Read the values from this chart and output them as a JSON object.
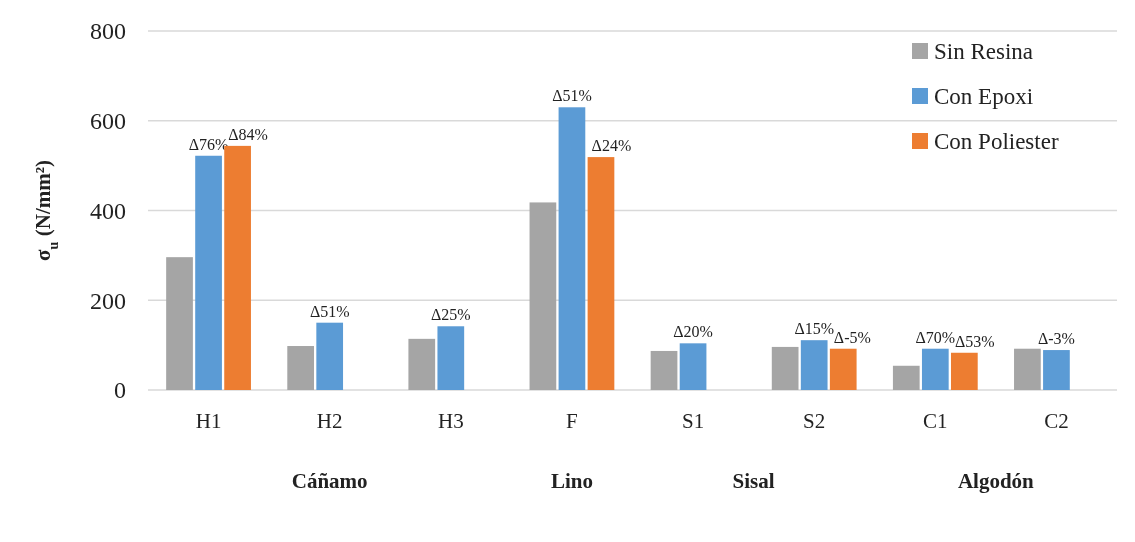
{
  "chart_data": {
    "type": "bar",
    "ylabel": "σ$_{u}$ (N/mm²)",
    "categories": [
      "H1",
      "H2",
      "H3",
      "F",
      "S1",
      "S2",
      "C1",
      "C2"
    ],
    "series": [
      {
        "name": "Sin Resina",
        "color": "#a5a5a5",
        "values": [
          296,
          98,
          114,
          418,
          87,
          96,
          54,
          92
        ]
      },
      {
        "name": "Con Epoxi",
        "color": "#5b9bd5",
        "values": [
          522,
          150,
          142,
          630,
          104,
          111,
          92,
          89
        ],
        "value_labels": [
          "Δ76%",
          "Δ51%",
          "Δ25%",
          "Δ51%",
          "Δ20%",
          "Δ15%",
          "Δ70%",
          "Δ-3%"
        ]
      },
      {
        "name": "Con Poliester",
        "color": "#ed7d31",
        "values": [
          544,
          null,
          null,
          519,
          null,
          92,
          83,
          null
        ],
        "value_labels": [
          "Δ84%",
          null,
          null,
          "Δ24%",
          null,
          "Δ-5%",
          "Δ53%",
          null
        ]
      }
    ],
    "ylim": [
      0,
      800
    ],
    "yticks": [
      0,
      200,
      400,
      600,
      800
    ],
    "grid": "y",
    "legend": "top right",
    "annotations": [
      "Cáñamo",
      "Lino",
      "Sisal",
      "Algodón"
    ]
  }
}
